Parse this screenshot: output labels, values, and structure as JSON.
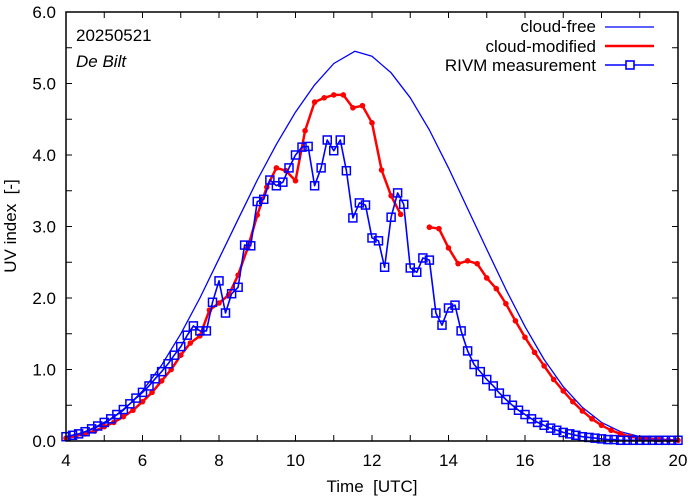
{
  "chart_data": {
    "type": "line",
    "title": "",
    "annotations": {
      "date": "20250521",
      "station": "De Bilt"
    },
    "xlabel": "Time  [UTC]",
    "ylabel": "UV index  [-]",
    "xlim": [
      4,
      20
    ],
    "ylim": [
      0,
      6
    ],
    "xticks": [
      4,
      6,
      8,
      10,
      12,
      14,
      16,
      18,
      20
    ],
    "xtick_labels": [
      "4",
      "6",
      "8",
      "10",
      "12",
      "14",
      "16",
      "18",
      "20"
    ],
    "yticks": [
      0,
      1,
      2,
      3,
      4,
      5,
      6
    ],
    "ytick_labels": [
      "0.0",
      "1.0",
      "2.0",
      "3.0",
      "4.0",
      "5.0",
      "6.0"
    ],
    "grid": false,
    "legend_position": "top-right",
    "colors": {
      "cloud_free": "#0000ff",
      "cloud_modified": "#ff0000",
      "rivm": "#0000ff"
    },
    "series": [
      {
        "name": "cloud-free",
        "style": "line",
        "x": [
          4.0,
          4.5,
          5.0,
          5.5,
          6.0,
          6.5,
          7.0,
          7.5,
          8.0,
          8.5,
          9.0,
          9.5,
          10.0,
          10.5,
          11.0,
          11.55,
          12.0,
          12.5,
          13.0,
          13.5,
          14.0,
          14.5,
          15.0,
          15.5,
          16.0,
          16.5,
          17.0,
          17.5,
          18.0,
          18.5,
          19.0,
          19.5,
          20.0
        ],
        "y": [
          0.05,
          0.12,
          0.24,
          0.43,
          0.7,
          1.06,
          1.5,
          2.0,
          2.55,
          3.1,
          3.65,
          4.15,
          4.6,
          4.98,
          5.28,
          5.45,
          5.38,
          5.15,
          4.8,
          4.35,
          3.82,
          3.25,
          2.68,
          2.12,
          1.6,
          1.14,
          0.76,
          0.47,
          0.26,
          0.13,
          0.06,
          0.03,
          0.01
        ]
      },
      {
        "name": "cloud-modified",
        "style": "line-dot",
        "segments": [
          {
            "x": [
              4.0,
              4.25,
              4.5,
              4.75,
              5.0,
              5.25,
              5.5,
              5.75,
              6.0,
              6.25,
              6.5,
              6.75,
              7.0,
              7.25,
              7.5,
              7.75,
              8.0,
              8.25,
              8.5,
              8.75,
              9.0,
              9.25,
              9.5,
              9.75,
              10.0,
              10.25,
              10.5,
              10.75,
              11.0,
              11.25,
              11.5,
              11.75,
              12.0,
              12.25,
              12.5,
              12.75
            ],
            "y": [
              0.04,
              0.07,
              0.1,
              0.14,
              0.2,
              0.26,
              0.34,
              0.43,
              0.55,
              0.68,
              0.84,
              1.0,
              1.2,
              1.37,
              1.47,
              1.83,
              1.93,
              2.04,
              2.32,
              2.7,
              3.16,
              3.55,
              3.82,
              3.78,
              3.64,
              4.34,
              4.74,
              4.8,
              4.84,
              4.84,
              4.66,
              4.69,
              4.45,
              3.79,
              3.43,
              3.17
            ]
          },
          {
            "x": [
              13.5,
              13.75,
              14.0,
              14.25,
              14.5,
              14.75,
              15.0,
              15.25,
              15.5,
              15.75,
              16.0,
              16.25,
              16.5,
              16.75,
              17.0,
              17.25,
              17.5,
              17.75,
              18.0,
              18.25,
              18.5,
              18.75,
              19.0,
              19.25,
              19.5,
              19.75,
              20.0
            ],
            "y": [
              2.99,
              2.97,
              2.7,
              2.48,
              2.52,
              2.48,
              2.28,
              2.13,
              1.92,
              1.68,
              1.45,
              1.24,
              1.05,
              0.86,
              0.7,
              0.55,
              0.42,
              0.31,
              0.22,
              0.15,
              0.1,
              0.06,
              0.04,
              0.03,
              0.02,
              0.01,
              0.01
            ]
          }
        ]
      },
      {
        "name": "RIVM measurement",
        "style": "line-square",
        "x": [
          4.0,
          4.17,
          4.33,
          4.5,
          4.67,
          4.83,
          5.0,
          5.17,
          5.33,
          5.5,
          5.67,
          5.83,
          6.0,
          6.17,
          6.33,
          6.5,
          6.67,
          6.83,
          7.0,
          7.17,
          7.33,
          7.5,
          7.67,
          7.83,
          8.0,
          8.17,
          8.33,
          8.5,
          8.67,
          8.83,
          9.0,
          9.17,
          9.33,
          9.5,
          9.67,
          9.83,
          10.0,
          10.17,
          10.33,
          10.5,
          10.67,
          10.83,
          11.0,
          11.17,
          11.33,
          11.5,
          11.67,
          11.83,
          12.0,
          12.17,
          12.33,
          12.5,
          12.67,
          12.83,
          13.0,
          13.17,
          13.33,
          13.5,
          13.67,
          13.83,
          14.0,
          14.17,
          14.33,
          14.5,
          14.67,
          14.83,
          15.0,
          15.17,
          15.33,
          15.5,
          15.67,
          15.83,
          16.0,
          16.17,
          16.33,
          16.5,
          16.67,
          16.83,
          17.0,
          17.17,
          17.33,
          17.5,
          17.67,
          17.83,
          18.0,
          18.17,
          18.33,
          18.5,
          18.67,
          18.83,
          19.0,
          19.17,
          19.33,
          19.5,
          19.67,
          19.83,
          20.0
        ],
        "y": [
          0.06,
          0.08,
          0.1,
          0.13,
          0.17,
          0.21,
          0.26,
          0.31,
          0.37,
          0.44,
          0.52,
          0.6,
          0.68,
          0.77,
          0.87,
          0.97,
          1.08,
          1.2,
          1.32,
          1.48,
          1.61,
          1.54,
          1.54,
          1.94,
          2.24,
          1.79,
          2.06,
          2.15,
          2.74,
          2.73,
          3.35,
          3.38,
          3.65,
          3.57,
          3.62,
          3.82,
          4.0,
          4.11,
          4.12,
          3.57,
          3.82,
          4.21,
          4.06,
          4.21,
          3.78,
          3.12,
          3.33,
          3.3,
          2.84,
          2.8,
          2.43,
          3.13,
          3.47,
          3.31,
          2.42,
          2.36,
          2.56,
          2.53,
          1.79,
          1.62,
          1.86,
          1.9,
          1.54,
          1.26,
          1.07,
          0.97,
          0.86,
          0.77,
          0.67,
          0.58,
          0.5,
          0.43,
          0.37,
          0.31,
          0.26,
          0.22,
          0.18,
          0.15,
          0.12,
          0.1,
          0.08,
          0.06,
          0.05,
          0.04,
          0.03,
          0.02,
          0.02,
          0.01,
          0.01,
          0.01,
          0.01,
          0.01,
          0.01,
          0.01,
          0.01,
          0.01,
          0.01
        ]
      }
    ]
  }
}
